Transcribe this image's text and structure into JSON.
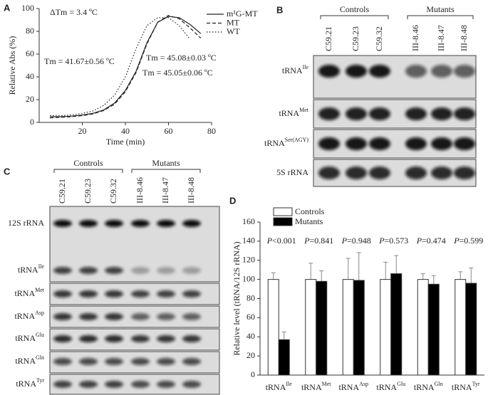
{
  "chart_data": [
    {
      "panel": "A",
      "type": "line",
      "x_label": "Time (min)",
      "y_label": "Relative Abs (%)",
      "x": [
        5,
        10,
        15,
        20,
        25,
        30,
        35,
        40,
        45,
        50,
        55,
        60,
        65,
        70,
        75
      ],
      "series": [
        {
          "name": "m¹G-MT",
          "color": "#222222",
          "line_style": "solid",
          "values": [
            5,
            5,
            5.5,
            6.5,
            8,
            11,
            17,
            28,
            45,
            70,
            88,
            93,
            92,
            86,
            78
          ]
        },
        {
          "name": "MT",
          "color": "#222222",
          "line_style": "dashed",
          "values": [
            4,
            4.5,
            5,
            6,
            7.5,
            10.5,
            16,
            27,
            44,
            69,
            88,
            94,
            91,
            83,
            74
          ]
        },
        {
          "name": "WT",
          "color": "#222222",
          "line_style": "dotted",
          "values": [
            6,
            6,
            6.5,
            8,
            10,
            15,
            24,
            40,
            65,
            85,
            92,
            92,
            85,
            73,
            null
          ]
        }
      ],
      "annotations": [
        "ΔTm = 3.4 ºC",
        "Tm = 41.67±0.56 ºC",
        "Tm = 45.08±0.03 ºC",
        "Tm = 45.05±0.06 ºC"
      ],
      "xlim": [
        0,
        80
      ],
      "xticks": [
        20,
        40,
        60,
        80
      ],
      "ylim": [
        0,
        100
      ],
      "yticks": [
        0,
        20,
        40,
        60,
        80,
        100
      ]
    },
    {
      "panel": "D",
      "type": "bar",
      "y_label": "Relative level (tRNA/12S rRNA)",
      "categories": [
        "tRNAIle",
        "tRNAMet",
        "tRNAAsp",
        "tRNAGlu",
        "tRNAGln",
        "tRNATyr"
      ],
      "series": [
        {
          "name": "Controls",
          "color": "#ffffff",
          "values": [
            100,
            100,
            100,
            100,
            100,
            100
          ],
          "errors": [
            7,
            17,
            22,
            18,
            6,
            8
          ]
        },
        {
          "name": "Mutants",
          "color": "#000000",
          "values": [
            37,
            98,
            99,
            106,
            95,
            96
          ],
          "errors": [
            8,
            11,
            29,
            19,
            9,
            16
          ]
        }
      ],
      "annotations": [
        "P<0.001",
        "P=0.841",
        "P=0.948",
        "P=0.573",
        "P=0.474",
        "P=0.599"
      ],
      "ylim": [
        0,
        160
      ],
      "yticks": [
        0,
        20,
        40,
        60,
        80,
        100,
        120,
        140,
        160
      ]
    }
  ],
  "blots": [
    {
      "panel": "B",
      "groups": [
        {
          "name": "Controls",
          "lanes": [
            "C59.21",
            "C59.23",
            "C59.32"
          ]
        },
        {
          "name": "Mutants",
          "lanes": [
            "III-8.46",
            "III-8.47",
            "III-8.48"
          ]
        }
      ],
      "rows": [
        "tRNAIle",
        "tRNAMet",
        "tRNASer(AGY)",
        "5S rRNA"
      ]
    },
    {
      "panel": "C",
      "groups": [
        {
          "name": "Controls",
          "lanes": [
            "C59.21",
            "C59.23",
            "C59.32"
          ]
        },
        {
          "name": "Mutants",
          "lanes": [
            "III-8.46",
            "III-8.47",
            "III-8.48"
          ]
        }
      ],
      "rows": [
        "12S rRNA",
        "tRNAIle",
        "tRNAMet",
        "tRNAAsp",
        "tRNAGlu",
        "tRNAGln",
        "tRNATyr"
      ]
    }
  ]
}
